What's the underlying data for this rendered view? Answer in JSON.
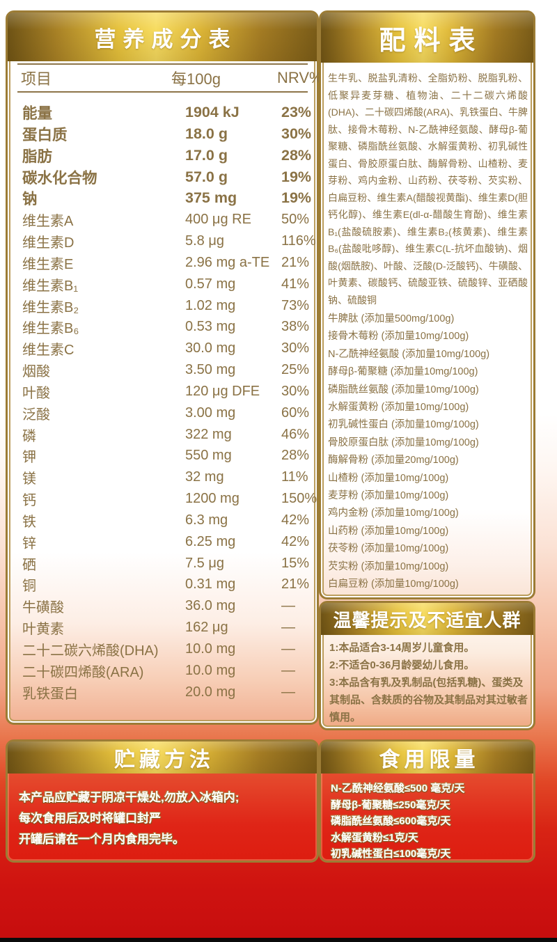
{
  "nutrition": {
    "title": "营养成分表",
    "header": {
      "item": "项目",
      "per100g": "每100g",
      "nrv": "NRV%"
    },
    "rows": [
      {
        "label": "能量",
        "value": "1904 kJ",
        "nrv": "23%",
        "bold": true
      },
      {
        "label": "蛋白质",
        "value": "18.0 g",
        "nrv": "30%",
        "bold": true
      },
      {
        "label": "脂肪",
        "value": "17.0 g",
        "nrv": "28%",
        "bold": true
      },
      {
        "label": "碳水化合物",
        "value": "57.0 g",
        "nrv": "19%",
        "bold": true
      },
      {
        "label": "钠",
        "value": "375 mg",
        "nrv": "19%",
        "bold": true
      },
      {
        "label": "维生素A",
        "value": "400 μg RE",
        "nrv": "50%",
        "bold": false
      },
      {
        "label": "维生素D",
        "value": "5.8 μg",
        "nrv": "116%",
        "bold": false
      },
      {
        "label": "维生素E",
        "value": "2.96 mg a-TE",
        "nrv": "21%",
        "bold": false
      },
      {
        "label": "维生素B₁",
        "value": "0.57 mg",
        "nrv": "41%",
        "bold": false
      },
      {
        "label": "维生素B₂",
        "value": "1.02 mg",
        "nrv": "73%",
        "bold": false
      },
      {
        "label": "维生素B₆",
        "value": "0.53 mg",
        "nrv": "38%",
        "bold": false
      },
      {
        "label": "维生素C",
        "value": "30.0 mg",
        "nrv": "30%",
        "bold": false
      },
      {
        "label": "烟酸",
        "value": "3.50 mg",
        "nrv": "25%",
        "bold": false
      },
      {
        "label": "叶酸",
        "value": "120 μg DFE",
        "nrv": "30%",
        "bold": false
      },
      {
        "label": "泛酸",
        "value": "3.00 mg",
        "nrv": "60%",
        "bold": false
      },
      {
        "label": "磷",
        "value": "322 mg",
        "nrv": "46%",
        "bold": false
      },
      {
        "label": "钾",
        "value": "550 mg",
        "nrv": "28%",
        "bold": false
      },
      {
        "label": "镁",
        "value": "32 mg",
        "nrv": "11%",
        "bold": false
      },
      {
        "label": "钙",
        "value": "1200 mg",
        "nrv": "150%",
        "bold": false
      },
      {
        "label": "铁",
        "value": "6.3 mg",
        "nrv": "42%",
        "bold": false
      },
      {
        "label": "锌",
        "value": "6.25 mg",
        "nrv": "42%",
        "bold": false
      },
      {
        "label": "硒",
        "value": "7.5 μg",
        "nrv": "15%",
        "bold": false
      },
      {
        "label": "铜",
        "value": "0.31 mg",
        "nrv": "21%",
        "bold": false
      },
      {
        "label": "牛磺酸",
        "value": "36.0 mg",
        "nrv": "—",
        "bold": false
      },
      {
        "label": "叶黄素",
        "value": "162 μg",
        "nrv": "—",
        "bold": false
      },
      {
        "label": "二十二碳六烯酸(DHA)",
        "value": "10.0 mg",
        "nrv": "—",
        "bold": false
      },
      {
        "label": "二十碳四烯酸(ARA)",
        "value": "10.0 mg",
        "nrv": "—",
        "bold": false
      },
      {
        "label": "乳铁蛋白",
        "value": "20.0 mg",
        "nrv": "—",
        "bold": false
      }
    ]
  },
  "ingredients": {
    "title": "配料表",
    "text": "生牛乳、脱盐乳清粉、全脂奶粉、脱脂乳粉、低聚异麦芽糖、植物油、二十二碳六烯酸(DHA)、二十碳四烯酸(ARA)、乳铁蛋白、牛脾肽、接骨木莓粉、N-乙酰神经氨酸、酵母β-葡聚糖、磷脂酰丝氨酸、水解蛋黄粉、初乳碱性蛋白、骨胶原蛋白肽、酶解骨粉、山楂粉、麦芽粉、鸡内金粉、山药粉、茯苓粉、芡实粉、白扁豆粉、维生素A(醋酸视黄酯)、维生素D(胆钙化醇)、维生素E(dl-α-醋酸生育酚)、维生素B₁(盐酸硫胺素)、维生素B₂(核黄素)、维生素B₆(盐酸吡哆醇)、维生素C(L-抗坏血酸钠)、烟酸(烟酰胺)、叶酸、泛酸(D-泛酸钙)、牛磺酸、叶黄素、碳酸钙、硫酸亚铁、硫酸锌、亚硒酸钠、硫酸铜",
    "additives": [
      "牛脾肽 (添加量500mg/100g)",
      "接骨木莓粉 (添加量10mg/100g)",
      "N-乙酰神经氨酸 (添加量10mg/100g)",
      "酵母β-葡聚糖 (添加量10mg/100g)",
      "磷脂酰丝氨酸 (添加量10mg/100g)",
      "水解蛋黄粉 (添加量10mg/100g)",
      "初乳碱性蛋白 (添加量10mg/100g)",
      "骨胶原蛋白肽 (添加量10mg/100g)",
      "酶解骨粉 (添加量20mg/100g)",
      "山楂粉 (添加量10mg/100g)",
      "麦芽粉 (添加量10mg/100g)",
      "鸡内金粉 (添加量10mg/100g)",
      "山药粉 (添加量10mg/100g)",
      "茯苓粉 (添加量10mg/100g)",
      "芡实粉 (添加量10mg/100g)",
      "白扁豆粉 (添加量10mg/100g)"
    ]
  },
  "tips": {
    "title": "温馨提示及不适宜人群",
    "lines": [
      "1:本品适合3-14周岁儿童食用。",
      "2:不适合0-36月龄婴幼儿食用。",
      "3:本品含有乳及乳制品(包括乳糖)、蛋类及其制品、含麸质的谷物及其制品对其过敏者慎用。"
    ]
  },
  "storage": {
    "title": "贮藏方法",
    "lines": [
      "本产品应贮藏于阴凉干燥处,勿放入冰箱内;",
      "每次食用后及时将罐口封严",
      "开罐后请在一个月内食用完毕。"
    ]
  },
  "limits": {
    "title": "食用限量",
    "lines": [
      "N-乙酰神经氨酸≤500 毫克/天",
      "酵母β-葡聚糖≤250毫克/天",
      "磷脂酰丝氨酸≤600毫克/天",
      "水解蛋黄粉≤1克/天",
      "初乳碱性蛋白≤100毫克/天"
    ]
  },
  "colors": {
    "gold_border": "#9c7c35",
    "gold_banner_bright": "#f7dc60",
    "gold_banner_dark": "#6e5315",
    "text_bronze": "#8a7245",
    "red_panel_top": "#e9603a",
    "red_panel_bottom": "#dd1d10",
    "page_red_bottom": "#c60d0e",
    "salmon_mid": "#f0a384"
  }
}
